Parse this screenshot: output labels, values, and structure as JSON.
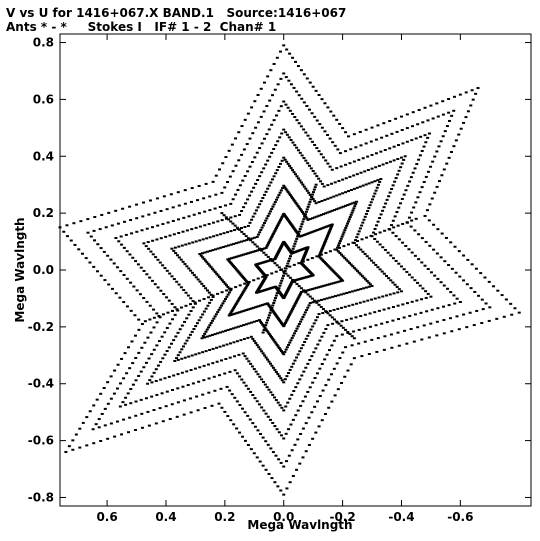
{
  "title_line1": "V vs U for 1416+067.X BAND.1   Source:1416+067",
  "title_line2": "Ants * - *     Stokes I   IF# 1 - 2  Chan# 1",
  "chart_data": {
    "type": "scatter",
    "xlabel": "Mega Wavlngth",
    "ylabel": "Mega Wavlngth",
    "xlim": [
      0.76,
      -0.84
    ],
    "ylim": [
      -0.83,
      0.83
    ],
    "x_ticks": [
      0.6,
      0.4,
      0.2,
      0.0,
      -0.2,
      -0.4,
      -0.6
    ],
    "x_tick_labels": [
      "0.6",
      "0.4",
      "0.2",
      "0.0",
      "-0.2",
      "-0.4",
      "-0.6"
    ],
    "y_ticks": [
      0.8,
      0.6,
      0.4,
      0.2,
      0.0,
      -0.2,
      -0.4,
      -0.6,
      -0.8
    ],
    "y_tick_labels": [
      "0.8",
      "0.6",
      "0.4",
      "0.2",
      "0.0",
      "-0.2",
      "-0.4",
      "-0.6",
      "-0.8"
    ],
    "grid": false,
    "marker_color": "#000000",
    "pattern": "six-armed star of uv tracks, point-symmetric about the origin",
    "arms": [
      {
        "tip": [
          0.0,
          0.79
        ]
      },
      {
        "tip": [
          -0.66,
          0.64
        ]
      },
      {
        "tip": [
          -0.8,
          -0.15
        ]
      },
      {
        "tip": [
          0.0,
          -0.79
        ]
      },
      {
        "tip": [
          0.74,
          -0.64
        ]
      },
      {
        "tip": [
          0.76,
          0.15
        ]
      }
    ],
    "notches": [
      {
        "at": [
          -0.22,
          0.47
        ]
      },
      {
        "at": [
          -0.48,
          0.19
        ]
      },
      {
        "at": [
          -0.24,
          -0.31
        ]
      },
      {
        "at": [
          0.22,
          -0.47
        ]
      },
      {
        "at": [
          0.48,
          -0.19
        ]
      },
      {
        "at": [
          0.24,
          0.31
        ]
      }
    ],
    "baselines": [
      {
        "a": [
          0.21,
          0.2
        ],
        "b": [
          -0.24,
          -0.24
        ]
      },
      {
        "a": [
          0.47,
          -0.18
        ],
        "b": [
          -0.45,
          0.18
        ]
      },
      {
        "a": [
          0.07,
          -0.22
        ],
        "b": [
          -0.11,
          0.3
        ]
      }
    ],
    "track_count": 8,
    "points_per_track": 22
  }
}
